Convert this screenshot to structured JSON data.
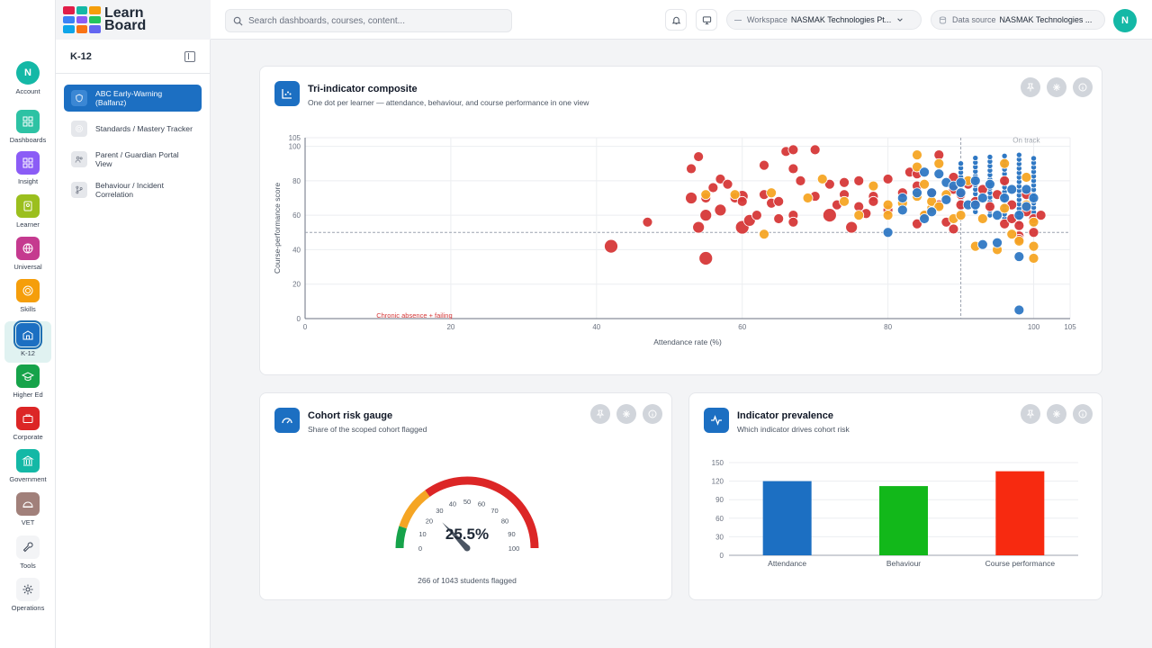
{
  "logo": {
    "line1": "Learn",
    "line2": "Board"
  },
  "rail": [
    {
      "label": "Account",
      "color": "#14b8a6",
      "icon": "avatar",
      "initial": "N"
    },
    {
      "label": "Dashboards",
      "color": "#2dc2a4",
      "icon": "dashboards-icon"
    },
    {
      "label": "Insight",
      "color": "#8b5cf6",
      "icon": "insight-icon"
    },
    {
      "label": "Learner",
      "color": "#9bbf1e",
      "icon": "learner-icon"
    },
    {
      "label": "Universal",
      "color": "#c53a8f",
      "icon": "globe-icon"
    },
    {
      "label": "Skills",
      "color": "#f59e0b",
      "icon": "target-icon"
    },
    {
      "label": "K-12",
      "color": "#1c6fc2",
      "icon": "school-icon",
      "active": true
    },
    {
      "label": "Higher Ed",
      "color": "#16a34a",
      "icon": "graduation-cap-icon"
    },
    {
      "label": "Corporate",
      "color": "#dc2626",
      "icon": "briefcase-icon"
    },
    {
      "label": "Government",
      "color": "#14b8a6",
      "icon": "bank-icon"
    },
    {
      "label": "VET",
      "color": "#a1807a",
      "icon": "hard-hat-icon"
    },
    {
      "label": "Tools",
      "color": "#f3f4f6",
      "icon": "wrench-icon"
    },
    {
      "label": "Operations",
      "color": "#f3f4f6",
      "icon": "gear-icon"
    }
  ],
  "sidebar": {
    "title": "K-12",
    "items": [
      {
        "label": "ABC Early-Warning (Balfanz)",
        "icon": "shield-icon",
        "active": true
      },
      {
        "label": "Standards / Mastery Tracker",
        "icon": "target-icon"
      },
      {
        "label": "Parent / Guardian Portal View",
        "icon": "users-icon"
      },
      {
        "label": "Behaviour / Incident Correlation",
        "icon": "branch-icon"
      }
    ]
  },
  "topbar": {
    "search_placeholder": "Search dashboards, courses, content...",
    "workspace_label": "Workspace",
    "workspace_value": "NASMAK Technologies Pt...",
    "datasource_label": "Data source",
    "datasource_value": "NASMAK Technologies ...",
    "user_initial": "N"
  },
  "scatter_card": {
    "title": "Tri-indicator composite",
    "subtitle": "One dot per learner — attendance, behaviour, and course performance in one view"
  },
  "gauge_card": {
    "title": "Cohort risk gauge",
    "subtitle": "Share of the scoped cohort flagged",
    "value_text": "25.5%",
    "caption": "266 of 1043 students flagged",
    "fraction": 0.255
  },
  "bar_card": {
    "title": "Indicator prevalence",
    "subtitle": "Which indicator drives cohort risk"
  },
  "chart_data": [
    {
      "type": "scatter",
      "xlabel": "Attendance rate (%)",
      "ylabel": "Course-performance score",
      "xlim": [
        0,
        105
      ],
      "ylim": [
        0,
        105
      ],
      "xticks": [
        0,
        20,
        40,
        60,
        80,
        100,
        105
      ],
      "yticks": [
        0,
        20,
        40,
        60,
        80,
        100,
        105
      ],
      "thresholds": {
        "x": 90,
        "y": 50
      },
      "annotations": {
        "on_track": "On track",
        "failing": "Chronic absence + failing"
      },
      "colors": {
        "red": "#d63838",
        "orange": "#f5a524",
        "blue": "#2f78c4"
      },
      "series": [
        {
          "color": "red",
          "points": [
            [
              42,
              42,
              6
            ],
            [
              47,
              56,
              4
            ],
            [
              53,
              87,
              4
            ],
            [
              53,
              70,
              5
            ],
            [
              55,
              35,
              6
            ],
            [
              54,
              94,
              4
            ],
            [
              54,
              53,
              5
            ],
            [
              55,
              60,
              5
            ],
            [
              55,
              70,
              4
            ],
            [
              56,
              76,
              4
            ],
            [
              57,
              63,
              5
            ],
            [
              57,
              81,
              4
            ],
            [
              58,
              78,
              4
            ],
            [
              59,
              70,
              4
            ],
            [
              60,
              71,
              5
            ],
            [
              60,
              53,
              6
            ],
            [
              60,
              68,
              4
            ],
            [
              61,
              57,
              5
            ],
            [
              62,
              60,
              4
            ],
            [
              63,
              89,
              4
            ],
            [
              63,
              72,
              4
            ],
            [
              64,
              67,
              4
            ],
            [
              65,
              68,
              4
            ],
            [
              65,
              58,
              4
            ],
            [
              66,
              97,
              4
            ],
            [
              67,
              87,
              4
            ],
            [
              67,
              98,
              4
            ],
            [
              67,
              60,
              4
            ],
            [
              67,
              56,
              4
            ],
            [
              68,
              80,
              4
            ],
            [
              70,
              98,
              4
            ],
            [
              70,
              71,
              4
            ],
            [
              72,
              78,
              4
            ],
            [
              72,
              60,
              6
            ],
            [
              73,
              66,
              4
            ],
            [
              74,
              79,
              4
            ],
            [
              74,
              72,
              4
            ],
            [
              75,
              53,
              5
            ],
            [
              76,
              80,
              4
            ],
            [
              76,
              65,
              4
            ],
            [
              77,
              61,
              4
            ],
            [
              78,
              71,
              4
            ],
            [
              78,
              68,
              4
            ],
            [
              80,
              63,
              4
            ],
            [
              80,
              81,
              4
            ],
            [
              82,
              73,
              4
            ],
            [
              83,
              85,
              4
            ],
            [
              84,
              84,
              4
            ],
            [
              84,
              77,
              4
            ],
            [
              84,
              55,
              4
            ],
            [
              85,
              60,
              4
            ],
            [
              86,
              73,
              4
            ],
            [
              87,
              95,
              4
            ],
            [
              87,
              66,
              4
            ],
            [
              88,
              56,
              4
            ],
            [
              89,
              82,
              4
            ],
            [
              89,
              75,
              4
            ],
            [
              89,
              52,
              4
            ],
            [
              90,
              66,
              4
            ],
            [
              90,
              72,
              4
            ],
            [
              91,
              78,
              4
            ],
            [
              92,
              68,
              4
            ],
            [
              93,
              75,
              4
            ],
            [
              94,
              65,
              4
            ],
            [
              95,
              72,
              4
            ],
            [
              96,
              80,
              4
            ],
            [
              96,
              55,
              4
            ],
            [
              97,
              66,
              4
            ],
            [
              97,
              58,
              4
            ],
            [
              98,
              54,
              4
            ],
            [
              98,
              48,
              4
            ],
            [
              98,
              46,
              4
            ],
            [
              99,
              72,
              4
            ],
            [
              99,
              62,
              4
            ],
            [
              100,
              58,
              4
            ],
            [
              100,
              50,
              4
            ],
            [
              101,
              60,
              4
            ]
          ]
        },
        {
          "color": "orange",
          "points": [
            [
              55,
              72,
              4
            ],
            [
              59,
              72,
              4
            ],
            [
              63,
              49,
              4
            ],
            [
              64,
              73,
              4
            ],
            [
              69,
              70,
              4
            ],
            [
              71,
              81,
              4
            ],
            [
              74,
              68,
              4
            ],
            [
              76,
              60,
              4
            ],
            [
              78,
              77,
              4
            ],
            [
              80,
              60,
              4
            ],
            [
              80,
              66,
              4
            ],
            [
              82,
              67,
              4
            ],
            [
              84,
              71,
              4
            ],
            [
              84,
              88,
              4
            ],
            [
              84,
              95,
              4
            ],
            [
              85,
              78,
              4
            ],
            [
              85,
              60,
              4
            ],
            [
              86,
              64,
              4
            ],
            [
              86,
              68,
              4
            ],
            [
              87,
              90,
              4
            ],
            [
              87,
              65,
              4
            ],
            [
              88,
              72,
              4
            ],
            [
              89,
              58,
              4
            ],
            [
              90,
              60,
              4
            ],
            [
              91,
              80,
              4
            ],
            [
              92,
              42,
              4
            ],
            [
              93,
              58,
              4
            ],
            [
              95,
              40,
              4
            ],
            [
              96,
              90,
              4
            ],
            [
              96,
              64,
              4
            ],
            [
              97,
              49,
              4
            ],
            [
              98,
              45,
              4
            ],
            [
              99,
              82,
              4
            ],
            [
              99,
              66,
              4
            ],
            [
              100,
              56,
              4
            ],
            [
              100,
              42,
              4
            ],
            [
              100,
              35,
              4
            ]
          ]
        },
        {
          "color": "blue",
          "points": [
            [
              80,
              50,
              4
            ],
            [
              82,
              70,
              4
            ],
            [
              82,
              63,
              4
            ],
            [
              84,
              73,
              4
            ],
            [
              85,
              85,
              4
            ],
            [
              85,
              58,
              4
            ],
            [
              86,
              62,
              4
            ],
            [
              86,
              73,
              4
            ],
            [
              87,
              84,
              4
            ],
            [
              88,
              69,
              4
            ],
            [
              88,
              79,
              4
            ],
            [
              89,
              77,
              4
            ],
            [
              90,
              73,
              4
            ],
            [
              90,
              79,
              4
            ],
            [
              91,
              66,
              4
            ],
            [
              92,
              66,
              4
            ],
            [
              92,
              80,
              4
            ],
            [
              93,
              70,
              4
            ],
            [
              93,
              43,
              4
            ],
            [
              94,
              78,
              4
            ],
            [
              95,
              44,
              4
            ],
            [
              95,
              60,
              4
            ],
            [
              96,
              70,
              4
            ],
            [
              97,
              75,
              4
            ],
            [
              98,
              60,
              4
            ],
            [
              98,
              36,
              4
            ],
            [
              98,
              5,
              4
            ],
            [
              99,
              75,
              4
            ],
            [
              99,
              65,
              4
            ],
            [
              100,
              70,
              4
            ]
          ]
        }
      ],
      "columns": [
        {
          "x": 90,
          "y_from": 64,
          "y_to": 92,
          "step": 2.6,
          "color": "blue"
        },
        {
          "x": 92,
          "y_from": 62,
          "y_to": 94,
          "step": 2.6,
          "color": "blue"
        },
        {
          "x": 94,
          "y_from": 60,
          "y_to": 94,
          "step": 2.6,
          "color": "blue"
        },
        {
          "x": 96,
          "y_from": 58,
          "y_to": 96,
          "step": 2.6,
          "color": "blue"
        },
        {
          "x": 98,
          "y_from": 56,
          "y_to": 96,
          "step": 2.6,
          "color": "blue"
        },
        {
          "x": 100,
          "y_from": 54,
          "y_to": 94,
          "step": 2.6,
          "color": "blue"
        }
      ]
    },
    {
      "type": "gauge",
      "value": 25.5,
      "ticks": [
        0,
        10,
        20,
        30,
        40,
        50,
        60,
        70,
        80,
        90,
        100
      ],
      "bands": [
        {
          "from": 0,
          "to": 10,
          "color": "#16a34a"
        },
        {
          "from": 10,
          "to": 30,
          "color": "#f5a524"
        },
        {
          "from": 30,
          "to": 100,
          "color": "#dc2626"
        }
      ]
    },
    {
      "type": "bar",
      "categories": [
        "Attendance",
        "Behaviour",
        "Course performance"
      ],
      "values": [
        120,
        112,
        136
      ],
      "colors": [
        "#1c6fc2",
        "#12b81a",
        "#f72a10"
      ],
      "ylim": [
        0,
        150
      ],
      "yticks": [
        0,
        30,
        60,
        90,
        120,
        150
      ]
    }
  ]
}
